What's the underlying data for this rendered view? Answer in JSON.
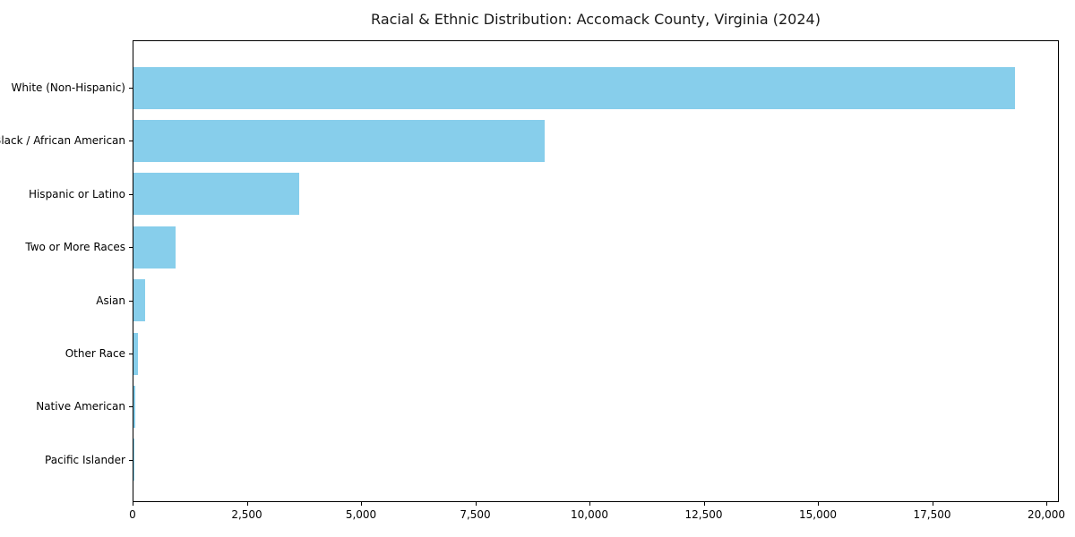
{
  "chart_data": {
    "type": "bar",
    "orientation": "horizontal",
    "title": "Racial & Ethnic Distribution: Accomack County, Virginia (2024)",
    "categories": [
      "White (Non-Hispanic)",
      "Black / African American",
      "Hispanic or Latino",
      "Two or More Races",
      "Asian",
      "Other Race",
      "Native American",
      "Pacific Islander"
    ],
    "values": [
      19300,
      9000,
      3630,
      920,
      250,
      100,
      40,
      10
    ],
    "xlabel": "",
    "ylabel": "",
    "xlim": [
      0,
      20270
    ],
    "xticks": [
      0,
      2500,
      5000,
      7500,
      10000,
      12500,
      15000,
      17500,
      20000
    ],
    "xtick_labels": [
      "0",
      "2,500",
      "5,000",
      "7,500",
      "10,000",
      "12,500",
      "15,000",
      "17,500",
      "20,000"
    ],
    "grid": false,
    "legend": null,
    "bar_color": "#87CEEB",
    "axis_color": "#000000",
    "background_color": "#FFFFFF"
  }
}
